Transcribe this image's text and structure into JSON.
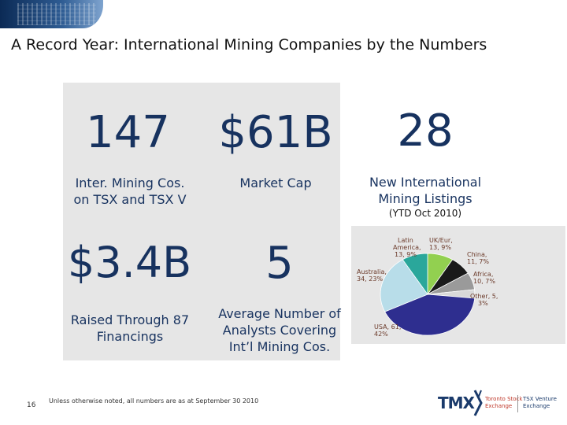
{
  "header": {
    "title": "A Record Year:  International Mining Companies by the Numbers"
  },
  "stats": {
    "companies": {
      "value": "147",
      "label_line1": "Inter. Mining Cos.",
      "label_line2": "on TSX and TSX V"
    },
    "market_cap": {
      "value": "$61B",
      "label": "Market Cap"
    },
    "new_listings": {
      "value": "28",
      "label_line1": "New International",
      "label_line2": "Mining Listings",
      "note": "(YTD Oct 2010)"
    },
    "financings": {
      "value": "$3.4B",
      "label_line1": "Raised Through 87",
      "label_line2": "Financings"
    },
    "analysts": {
      "value": "5",
      "label_line1": "Average Number of",
      "label_line2": "Analysts Covering",
      "label_line3": "Int’l Mining Cos."
    }
  },
  "chart_data": {
    "type": "pie",
    "title": "",
    "slices": [
      {
        "label": "USA",
        "count": 61,
        "percent": 42,
        "text": "USA, 61, 42%",
        "color": "#2e2e8f"
      },
      {
        "label": "Australia",
        "count": 34,
        "percent": 23,
        "text": "Australia, 34, 23%",
        "color": "#b8dde9"
      },
      {
        "label": "Latin America",
        "count": 13,
        "percent": 9,
        "text_line1": "Latin",
        "text_line2": "America,",
        "text_line3": "13, 9%",
        "color": "#2aa79b"
      },
      {
        "label": "UK/Eur",
        "count": 13,
        "percent": 9,
        "text_line1": "UK/Eur,",
        "text_line2": "13, 9%",
        "color": "#92d050"
      },
      {
        "label": "China",
        "count": 11,
        "percent": 7,
        "text_line1": "China,",
        "text_line2": "11, 7%",
        "color": "#1a1a1a"
      },
      {
        "label": "Africa",
        "count": 10,
        "percent": 7,
        "text_line1": "Africa,",
        "text_line2": "10, 7%",
        "color": "#9a9a9a"
      },
      {
        "label": "Other",
        "count": 5,
        "percent": 3,
        "text_line1": "Other, 5,",
        "text_line2": "3%",
        "color": "#d9d9d9"
      }
    ]
  },
  "footer": {
    "page_number": "16",
    "note": "Unless otherwise noted, all numbers are as at September 30 2010",
    "logo_text": "TMX",
    "exchange1_line1": "Toronto Stock",
    "exchange1_line2": "Exchange",
    "exchange2_line1": "TSX Venture",
    "exchange2_line2": "Exchange"
  },
  "colors": {
    "panel": "#e6e6e6",
    "stat_text": "#17325f",
    "banner": "#0b2a55"
  }
}
